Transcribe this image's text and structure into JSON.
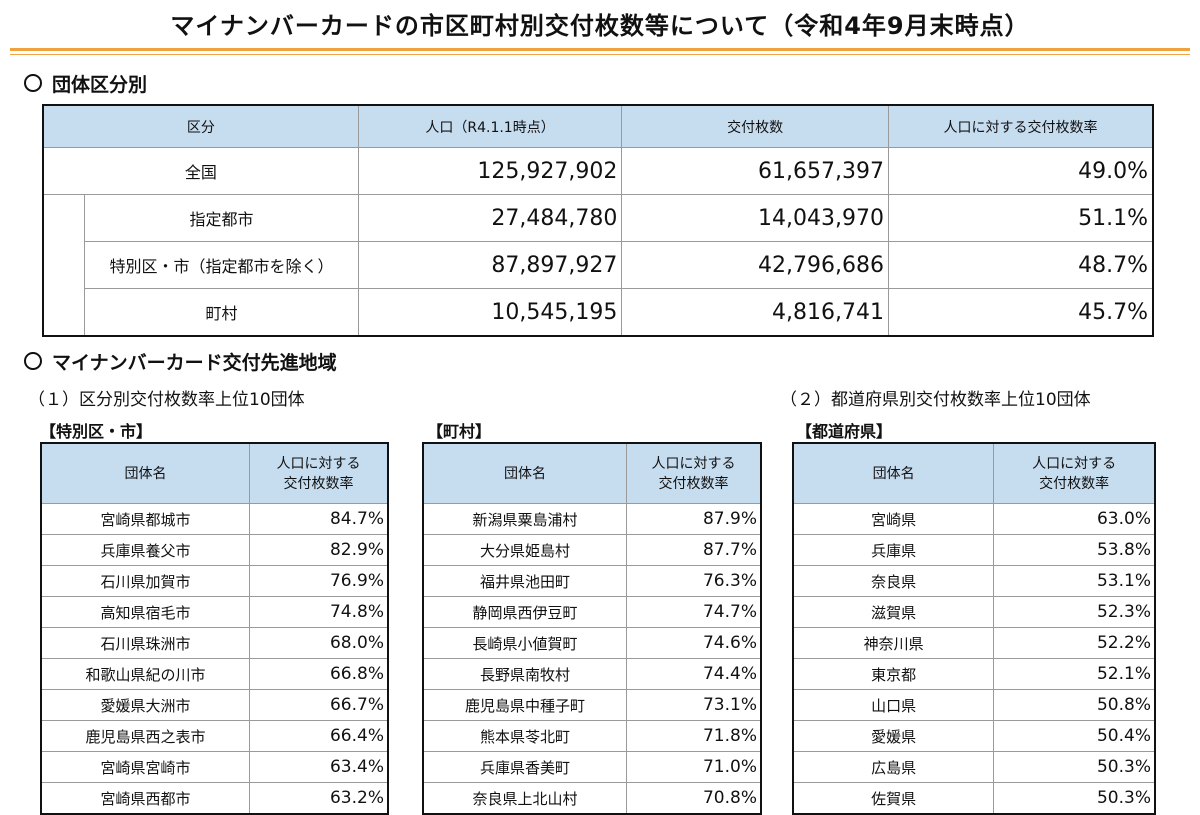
{
  "title": "マイナンバーカードの市区町村別交付枚数等について（令和4年9月末時点）",
  "section1": {
    "heading": "団体区分別"
  },
  "summary": {
    "headers": [
      "区分",
      "人口（R4.1.1時点）",
      "交付枚数",
      "人口に対する交付枚数率"
    ],
    "rows": [
      {
        "label": "全国",
        "population": "125,927,902",
        "cards": "61,657,397",
        "rate": "49.0%"
      },
      {
        "label": "指定都市",
        "population": "27,484,780",
        "cards": "14,043,970",
        "rate": "51.1%"
      },
      {
        "label": "特別区・市（指定都市を除く）",
        "population": "87,897,927",
        "cards": "42,796,686",
        "rate": "48.7%"
      },
      {
        "label": "町村",
        "population": "10,545,195",
        "cards": "4,816,741",
        "rate": "45.7%"
      }
    ]
  },
  "section2": {
    "heading": "マイナンバーカード交付先進地域",
    "sub1": "（１）区分別交付枚数率上位10団体",
    "sub2": "（２）都道府県別交付枚数率上位10団体"
  },
  "rank_headers": {
    "name": "団体名",
    "rate_line1": "人口に対する",
    "rate_line2": "交付枚数率"
  },
  "cities": {
    "caption": "【特別区・市】",
    "rows": [
      {
        "name": "宮崎県都城市",
        "rate": "84.7%"
      },
      {
        "name": "兵庫県養父市",
        "rate": "82.9%"
      },
      {
        "name": "石川県加賀市",
        "rate": "76.9%"
      },
      {
        "name": "高知県宿毛市",
        "rate": "74.8%"
      },
      {
        "name": "石川県珠洲市",
        "rate": "68.0%"
      },
      {
        "name": "和歌山県紀の川市",
        "rate": "66.8%"
      },
      {
        "name": "愛媛県大洲市",
        "rate": "66.7%"
      },
      {
        "name": "鹿児島県西之表市",
        "rate": "66.4%"
      },
      {
        "name": "宮崎県宮崎市",
        "rate": "63.4%"
      },
      {
        "name": "宮崎県西都市",
        "rate": "63.2%"
      }
    ]
  },
  "towns": {
    "caption": "【町村】",
    "rows": [
      {
        "name": "新潟県粟島浦村",
        "rate": "87.9%"
      },
      {
        "name": "大分県姫島村",
        "rate": "87.7%"
      },
      {
        "name": "福井県池田町",
        "rate": "76.3%"
      },
      {
        "name": "静岡県西伊豆町",
        "rate": "74.7%"
      },
      {
        "name": "長崎県小値賀町",
        "rate": "74.6%"
      },
      {
        "name": "長野県南牧村",
        "rate": "74.4%"
      },
      {
        "name": "鹿児島県中種子町",
        "rate": "73.1%"
      },
      {
        "name": "熊本県苓北町",
        "rate": "71.8%"
      },
      {
        "name": "兵庫県香美町",
        "rate": "71.0%"
      },
      {
        "name": "奈良県上北山村",
        "rate": "70.8%"
      }
    ]
  },
  "prefectures": {
    "caption": "【都道府県】",
    "rows": [
      {
        "name": "宮崎県",
        "rate": "63.0%"
      },
      {
        "name": "兵庫県",
        "rate": "53.8%"
      },
      {
        "name": "奈良県",
        "rate": "53.1%"
      },
      {
        "name": "滋賀県",
        "rate": "52.3%"
      },
      {
        "name": "神奈川県",
        "rate": "52.2%"
      },
      {
        "name": "東京都",
        "rate": "52.1%"
      },
      {
        "name": "山口県",
        "rate": "50.8%"
      },
      {
        "name": "愛媛県",
        "rate": "50.4%"
      },
      {
        "name": "広島県",
        "rate": "50.3%"
      },
      {
        "name": "佐賀県",
        "rate": "50.3%"
      }
    ]
  }
}
